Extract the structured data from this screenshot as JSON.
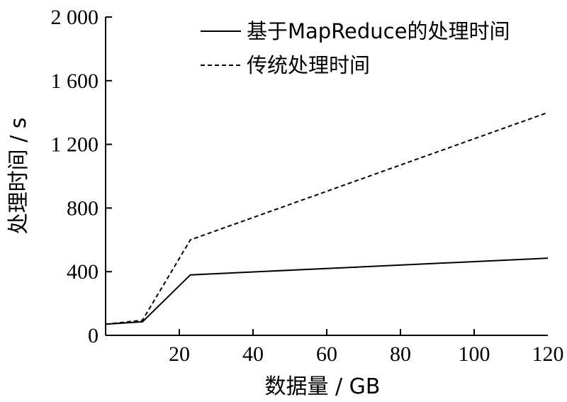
{
  "chart_data": {
    "type": "line",
    "xlabel": "数据量 / GB",
    "ylabel": "处理时间 / s",
    "xlim": [
      0,
      120
    ],
    "ylim": [
      0,
      2000
    ],
    "x_ticks": [
      20,
      40,
      60,
      80,
      100,
      120
    ],
    "x_tick_labels": [
      "20",
      "40",
      "60",
      "80",
      "100",
      "120"
    ],
    "y_ticks": [
      0,
      400,
      800,
      1200,
      1600,
      2000
    ],
    "y_tick_labels": [
      "0",
      "400",
      "800",
      "1 200",
      "1 600",
      "2 000"
    ],
    "grid": false,
    "legend_position": "top-right",
    "series": [
      {
        "name": "基于MapReduce的处理时间",
        "style": "solid",
        "color": "#000000",
        "x": [
          0,
          10,
          23,
          120
        ],
        "y": [
          70,
          85,
          380,
          485
        ]
      },
      {
        "name": "传统处理时间",
        "style": "dashed",
        "color": "#000000",
        "x": [
          0,
          10,
          23,
          120
        ],
        "y": [
          70,
          95,
          600,
          1400
        ]
      }
    ]
  }
}
